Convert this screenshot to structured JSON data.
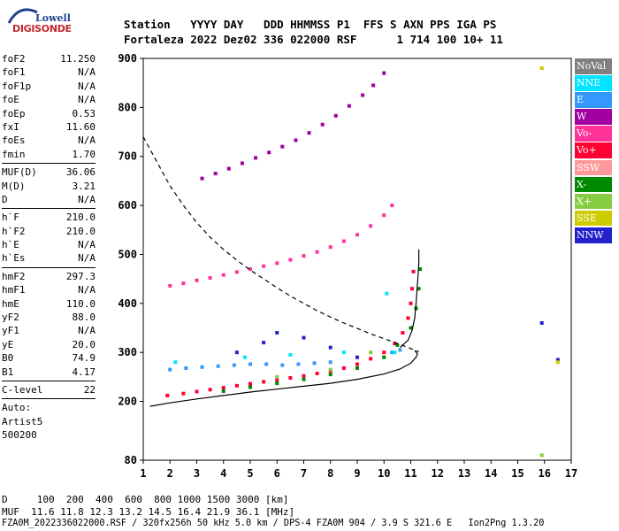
{
  "logo": {
    "line1": "Lowell",
    "line2": "DIGISONDE"
  },
  "header": {
    "line1": "Station   YYYY DAY   DDD HHMMSS P1  FFS S AXN PPS IGA PS",
    "line2": "Fortaleza 2022 Dez02 336 022000 RSF      1 714 100 10+ 11"
  },
  "params": [
    {
      "k": "foF2",
      "v": "11.250"
    },
    {
      "k": "foF1",
      "v": "N/A"
    },
    {
      "k": "foF1p",
      "v": "N/A"
    },
    {
      "k": "foE",
      "v": "N/A"
    },
    {
      "k": "foEp",
      "v": "0.53"
    },
    {
      "k": "fxI",
      "v": "11.60"
    },
    {
      "k": "foEs",
      "v": "N/A"
    },
    {
      "k": "fmin",
      "v": "1.70"
    },
    {
      "sep": true
    },
    {
      "k": "MUF(D)",
      "v": "36.06"
    },
    {
      "k": "M(D)",
      "v": "3.21"
    },
    {
      "k": "D",
      "v": "N/A"
    },
    {
      "sep": true
    },
    {
      "k": "h`F",
      "v": "210.0"
    },
    {
      "k": "h`F2",
      "v": "210.0"
    },
    {
      "k": "h`E",
      "v": "N/A"
    },
    {
      "k": "h`Es",
      "v": "N/A"
    },
    {
      "sep": true
    },
    {
      "k": "hmF2",
      "v": "297.3"
    },
    {
      "k": "hmF1",
      "v": "N/A"
    },
    {
      "k": "hmE",
      "v": "110.0"
    },
    {
      "k": "yF2",
      "v": "88.0"
    },
    {
      "k": "yF1",
      "v": "N/A"
    },
    {
      "k": "yE",
      "v": "20.0"
    },
    {
      "k": "B0",
      "v": "74.9"
    },
    {
      "k": "B1",
      "v": "4.17"
    },
    {
      "sep": true
    },
    {
      "k": "C-level",
      "v": "22"
    },
    {
      "sep": true
    },
    {
      "t": "Auto:"
    },
    {
      "t": "Artist5"
    },
    {
      "t": "500200"
    }
  ],
  "legend": [
    {
      "label": "NoVal",
      "color": "#808080"
    },
    {
      "label": "NNE",
      "color": "#00e5ff"
    },
    {
      "label": "E",
      "color": "#3399ff"
    },
    {
      "label": "W",
      "color": "#a000a0"
    },
    {
      "label": "Vo-",
      "color": "#ff3399"
    },
    {
      "label": "Vo+",
      "color": "#ff0033"
    },
    {
      "label": "SSW",
      "color": "#ff9999"
    },
    {
      "label": "X-",
      "color": "#008800"
    },
    {
      "label": "X+",
      "color": "#88cc44"
    },
    {
      "label": "SSE",
      "color": "#cccc00"
    },
    {
      "label": "NNW",
      "color": "#2222cc"
    }
  ],
  "footer": {
    "d_row": "D     100  200  400  600  800 1000 1500 3000 [km]",
    "muf_row": "MUF  11.6 11.8 12.3 13.2 14.5 16.4 21.9 36.1 [MHz]",
    "info_row": "FZA0M_2022336022000.RSF / 320fx256h 50 kHz 5.0 km / DPS-4 FZA0M 904 / 3.9 S 321.6 E   Ion2Png 1.3.20"
  },
  "chart_data": {
    "type": "scatter",
    "xlabel": "",
    "ylabel": "",
    "xlim": [
      1,
      17
    ],
    "ylim": [
      80,
      900
    ],
    "xticks": [
      1,
      2,
      3,
      4,
      5,
      6,
      7,
      8,
      9,
      10,
      11,
      12,
      13,
      14,
      15,
      16,
      17
    ],
    "yticks": [
      80,
      200,
      300,
      400,
      500,
      600,
      700,
      800,
      900
    ],
    "grid": false,
    "legend_position": "right",
    "series": [
      {
        "name": "Vo+",
        "color": "#ff0033",
        "points": [
          [
            1.9,
            212
          ],
          [
            2.5,
            216
          ],
          [
            3.0,
            220
          ],
          [
            3.5,
            224
          ],
          [
            4.0,
            228
          ],
          [
            4.5,
            232
          ],
          [
            5.0,
            236
          ],
          [
            5.5,
            240
          ],
          [
            6.0,
            244
          ],
          [
            6.5,
            248
          ],
          [
            7.0,
            252
          ],
          [
            7.5,
            257
          ],
          [
            8.0,
            262
          ],
          [
            8.5,
            268
          ],
          [
            9.0,
            276
          ],
          [
            9.5,
            287
          ],
          [
            10.0,
            300
          ],
          [
            10.4,
            318
          ],
          [
            10.7,
            340
          ],
          [
            10.9,
            370
          ],
          [
            11.0,
            400
          ],
          [
            11.05,
            430
          ],
          [
            11.1,
            465
          ]
        ]
      },
      {
        "name": "Vo-",
        "color": "#ff3399",
        "points": [
          [
            2.0,
            436
          ],
          [
            2.5,
            441
          ],
          [
            3.0,
            447
          ],
          [
            3.5,
            452
          ],
          [
            4.0,
            458
          ],
          [
            4.5,
            464
          ],
          [
            5.0,
            470
          ],
          [
            5.5,
            476
          ],
          [
            6.0,
            482
          ],
          [
            6.5,
            489
          ],
          [
            7.0,
            497
          ],
          [
            7.5,
            505
          ],
          [
            8.0,
            515
          ],
          [
            8.5,
            527
          ],
          [
            9.0,
            540
          ],
          [
            9.5,
            558
          ],
          [
            10.0,
            580
          ],
          [
            10.3,
            600
          ]
        ]
      },
      {
        "name": "W",
        "color": "#a000a0",
        "points": [
          [
            3.2,
            655
          ],
          [
            3.7,
            665
          ],
          [
            4.2,
            675
          ],
          [
            4.7,
            686
          ],
          [
            5.2,
            697
          ],
          [
            5.7,
            708
          ],
          [
            6.2,
            720
          ],
          [
            6.7,
            733
          ],
          [
            7.2,
            748
          ],
          [
            7.7,
            765
          ],
          [
            8.2,
            783
          ],
          [
            8.7,
            803
          ],
          [
            9.2,
            825
          ],
          [
            9.6,
            845
          ],
          [
            10.0,
            870
          ]
        ]
      },
      {
        "name": "X-",
        "color": "#008800",
        "points": [
          [
            4.0,
            221
          ],
          [
            5.0,
            229
          ],
          [
            6.0,
            237
          ],
          [
            7.0,
            245
          ],
          [
            8.0,
            255
          ],
          [
            9.0,
            268
          ],
          [
            10.0,
            290
          ],
          [
            10.5,
            315
          ],
          [
            11.0,
            350
          ],
          [
            11.2,
            390
          ],
          [
            11.3,
            430
          ],
          [
            11.35,
            470
          ]
        ]
      },
      {
        "name": "E",
        "color": "#3399ff",
        "points": [
          [
            2.0,
            265
          ],
          [
            2.6,
            268
          ],
          [
            3.2,
            270
          ],
          [
            3.8,
            272
          ],
          [
            4.4,
            274
          ],
          [
            5.0,
            276
          ],
          [
            5.6,
            276
          ],
          [
            6.2,
            274
          ],
          [
            6.8,
            276
          ],
          [
            7.4,
            278
          ],
          [
            8.0,
            280
          ],
          [
            10.3,
            300
          ],
          [
            10.6,
            305
          ]
        ]
      },
      {
        "name": "NNE",
        "color": "#00e5ff",
        "points": [
          [
            2.2,
            280
          ],
          [
            4.8,
            290
          ],
          [
            6.5,
            295
          ],
          [
            8.5,
            300
          ],
          [
            10.1,
            420
          ],
          [
            10.4,
            300
          ]
        ]
      },
      {
        "name": "NNW",
        "color": "#2222cc",
        "points": [
          [
            4.5,
            300
          ],
          [
            5.5,
            320
          ],
          [
            6.0,
            340
          ],
          [
            7.0,
            330
          ],
          [
            8.0,
            310
          ],
          [
            9.0,
            290
          ],
          [
            15.9,
            360
          ],
          [
            16.5,
            285
          ]
        ]
      },
      {
        "name": "X+",
        "color": "#88cc44",
        "points": [
          [
            6.0,
            250
          ],
          [
            8.0,
            265
          ],
          [
            9.5,
            300
          ],
          [
            15.9,
            90
          ]
        ]
      },
      {
        "name": "SSE",
        "color": "#cccc00",
        "points": [
          [
            16.5,
            280
          ],
          [
            15.9,
            880
          ]
        ]
      }
    ],
    "curves": [
      {
        "name": "dashed",
        "style": "dashed",
        "points": [
          [
            1.0,
            740
          ],
          [
            1.5,
            690
          ],
          [
            2.0,
            640
          ],
          [
            2.5,
            600
          ],
          [
            3.0,
            565
          ],
          [
            3.5,
            535
          ],
          [
            4.0,
            510
          ],
          [
            4.5,
            488
          ],
          [
            5.0,
            468
          ],
          [
            5.5,
            450
          ],
          [
            6.0,
            432
          ],
          [
            6.5,
            415
          ],
          [
            7.0,
            400
          ],
          [
            7.5,
            385
          ],
          [
            8.0,
            372
          ],
          [
            8.5,
            360
          ],
          [
            9.0,
            349
          ],
          [
            9.5,
            338
          ],
          [
            10.0,
            328
          ],
          [
            10.5,
            318
          ],
          [
            11.0,
            308
          ],
          [
            11.3,
            301
          ]
        ]
      },
      {
        "name": "true-height",
        "style": "solid",
        "points": [
          [
            1.25,
            190
          ],
          [
            2.0,
            197
          ],
          [
            3.0,
            205
          ],
          [
            4.0,
            212
          ],
          [
            5.0,
            219
          ],
          [
            6.0,
            225
          ],
          [
            7.0,
            231
          ],
          [
            8.0,
            237
          ],
          [
            9.0,
            245
          ],
          [
            10.0,
            256
          ],
          [
            10.6,
            266
          ],
          [
            11.0,
            278
          ],
          [
            11.2,
            290
          ],
          [
            11.25,
            297
          ],
          [
            11.15,
            304
          ]
        ]
      },
      {
        "name": "profile",
        "style": "solid",
        "points": [
          [
            10.6,
            310
          ],
          [
            10.9,
            325
          ],
          [
            11.05,
            345
          ],
          [
            11.15,
            370
          ],
          [
            11.2,
            400
          ],
          [
            11.25,
            440
          ],
          [
            11.3,
            480
          ],
          [
            11.3,
            510
          ]
        ]
      }
    ]
  }
}
